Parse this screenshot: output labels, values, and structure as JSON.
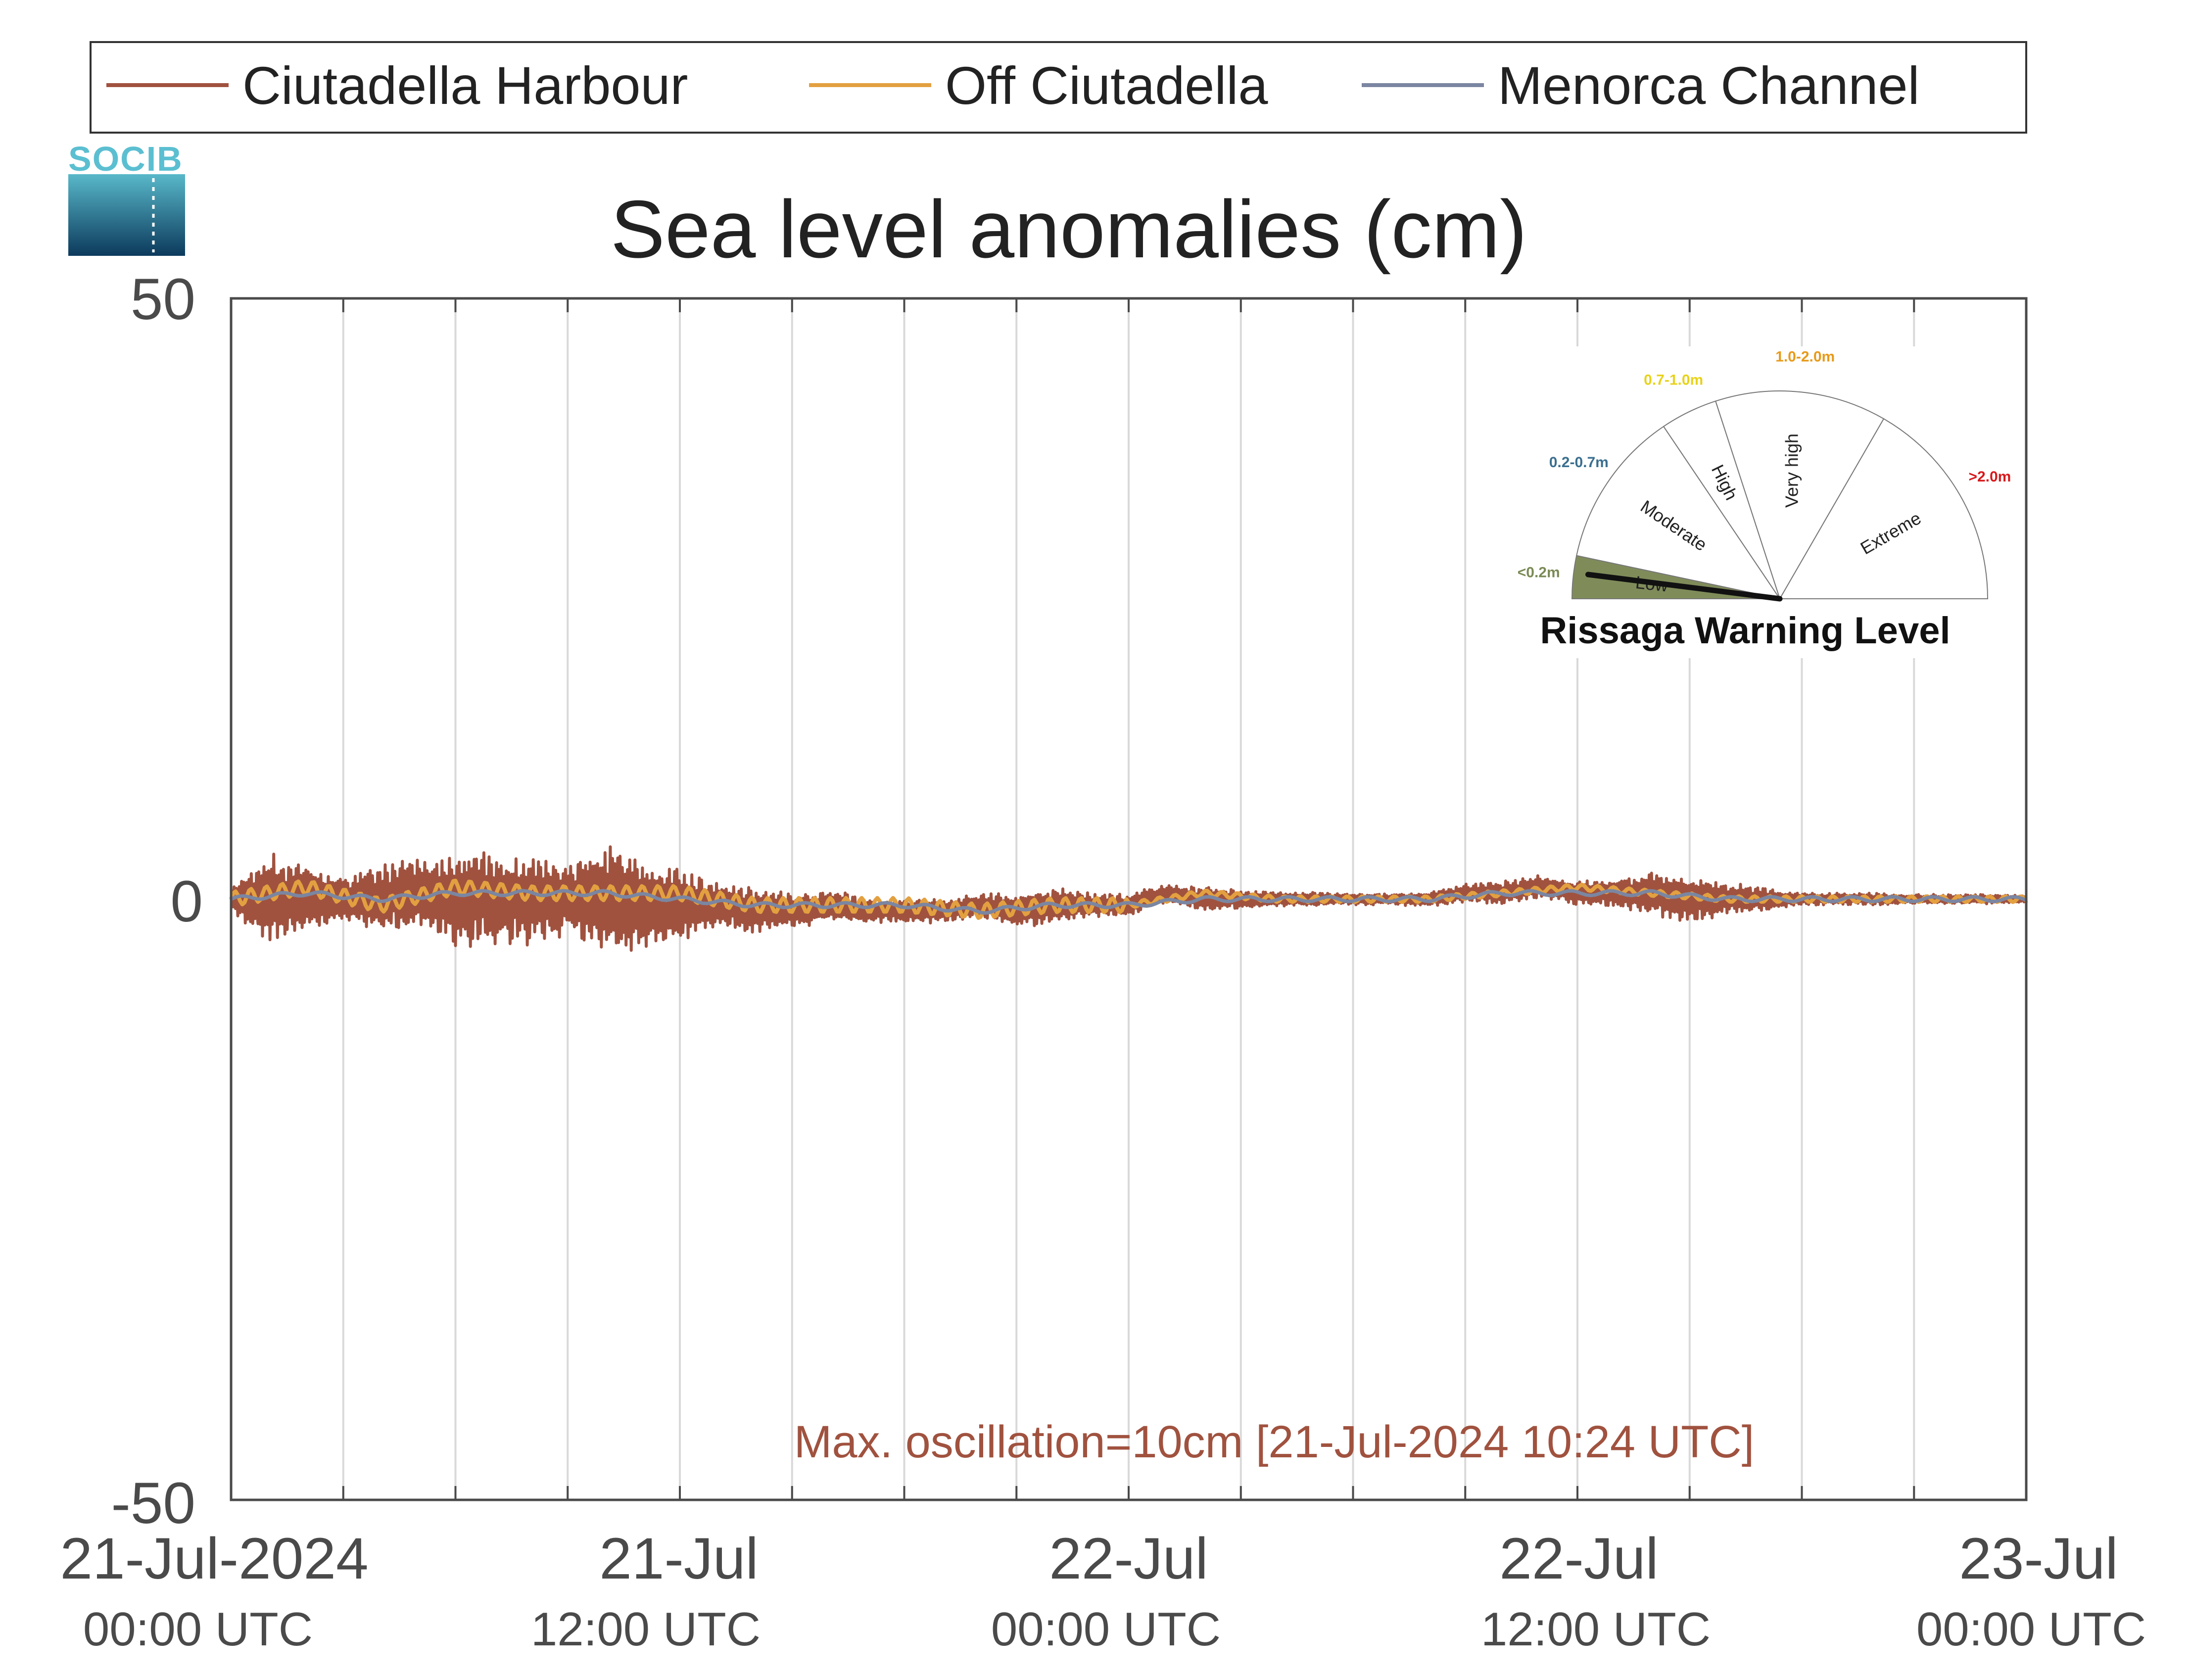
{
  "chart_data": {
    "type": "line",
    "title": "Sea level anomalies (cm)",
    "ylim": [
      -50,
      50
    ],
    "yticks": [
      "50",
      "0",
      "-50"
    ],
    "xlim_hours": [
      0,
      48
    ],
    "xtick_labels": [
      {
        "date": "21-Jul-2024",
        "time": "00:00 UTC",
        "hour": 0
      },
      {
        "date": "21-Jul",
        "time": "12:00 UTC",
        "hour": 12
      },
      {
        "date": "22-Jul",
        "time": "00:00 UTC",
        "hour": 24
      },
      {
        "date": "22-Jul",
        "time": "12:00 UTC",
        "hour": 36
      },
      {
        "date": "23-Jul",
        "time": "00:00 UTC",
        "hour": 48
      }
    ],
    "minor_grid_hours": [
      3,
      6,
      9,
      12,
      15,
      18,
      21,
      24,
      27,
      30,
      33,
      36,
      39,
      42,
      45
    ],
    "grid": "vertical",
    "legend_position": "top",
    "series": [
      {
        "name": "Ciutadella Harbour",
        "color": "#a0523f",
        "x_hours": [
          0,
          1,
          2,
          3,
          4,
          5,
          6,
          7,
          8,
          9,
          10,
          11,
          12,
          13,
          14,
          15,
          16,
          17,
          18,
          19,
          20,
          21,
          22,
          23,
          24,
          25,
          26,
          27,
          28,
          29,
          30,
          31,
          32,
          33,
          34,
          35,
          36,
          37,
          38,
          39,
          40,
          41,
          42,
          43,
          44,
          45,
          46,
          47,
          48
        ],
        "amplitude_cm": [
          1,
          4,
          3,
          2,
          3,
          3,
          4,
          4,
          4,
          3,
          5,
          4,
          3,
          2,
          2,
          1.5,
          1.5,
          1,
          1,
          1,
          1,
          1.5,
          1.5,
          1,
          1,
          0.8,
          1,
          0.8,
          0.6,
          0.6,
          0.5,
          0.5,
          0.6,
          0.8,
          1,
          1,
          1,
          1.2,
          2,
          2,
          1.5,
          1,
          0.5,
          0.5,
          0.5,
          0.4,
          0.4,
          0.4,
          0.3
        ],
        "mean_cm": [
          0,
          0,
          0,
          0,
          0,
          0.5,
          0,
          0,
          0,
          0,
          0,
          -0.5,
          -0.5,
          -0.5,
          -1,
          -1,
          -0.5,
          -1,
          -1,
          -1,
          -0.5,
          -1,
          -0.5,
          -0.5,
          -0.5,
          0.5,
          0,
          0,
          0,
          0,
          0,
          0,
          0,
          0.5,
          0.5,
          1,
          0.5,
          0.5,
          0.5,
          0,
          0,
          0,
          0,
          0,
          0,
          0,
          0,
          0,
          0
        ]
      },
      {
        "name": "Off Ciutadella",
        "color": "#e3a040",
        "x_hours": [
          0,
          2,
          4,
          6,
          8,
          10,
          12,
          14,
          16,
          18,
          20,
          22,
          24,
          26,
          28,
          30,
          32,
          34,
          36,
          38,
          40,
          42,
          44,
          46,
          48
        ],
        "values_cm": [
          0,
          1,
          -0.5,
          1,
          0.5,
          0.5,
          0.5,
          -0.5,
          -0.5,
          -0.5,
          -1,
          -0.5,
          -0.5,
          0.5,
          0,
          0,
          0,
          0.5,
          1,
          0.5,
          0,
          0,
          0,
          0,
          0
        ]
      },
      {
        "name": "Menorca Channel",
        "color": "#7b86a1",
        "x_hours": [
          0,
          2,
          4,
          6,
          8,
          10,
          12,
          14,
          16,
          18,
          20,
          22,
          24,
          26,
          28,
          30,
          32,
          34,
          36,
          38,
          40,
          42,
          44,
          46,
          48
        ],
        "values_cm": [
          0,
          0.5,
          0,
          0.5,
          0.5,
          0.5,
          0,
          -0.5,
          -0.5,
          -0.5,
          -1,
          -0.5,
          -0.5,
          0,
          0,
          0,
          0,
          0.5,
          0.5,
          0.5,
          0,
          0,
          0,
          0,
          0
        ]
      }
    ],
    "annotation": "Max. oscillation=10cm [21-Jul-2024 10:24 UTC]"
  },
  "logo": {
    "text": "SOCIB"
  },
  "gauge": {
    "title": "Rissaga Warning Level",
    "current_level_fraction": 0.04,
    "levels": [
      {
        "label": "Low",
        "range": "<0.2m",
        "range_color": "#7a8a55"
      },
      {
        "label": "Moderate",
        "range": "0.2-0.7m",
        "range_color": "#3a6f8f"
      },
      {
        "label": "High",
        "range": "0.7-1.0m",
        "range_color": "#e8d21a"
      },
      {
        "label": "Very high",
        "range": "1.0-2.0m",
        "range_color": "#e89a1a"
      },
      {
        "label": "Extreme",
        "range": ">2.0m",
        "range_color": "#d7191c"
      }
    ],
    "active_fill": "#7f8c5a"
  }
}
